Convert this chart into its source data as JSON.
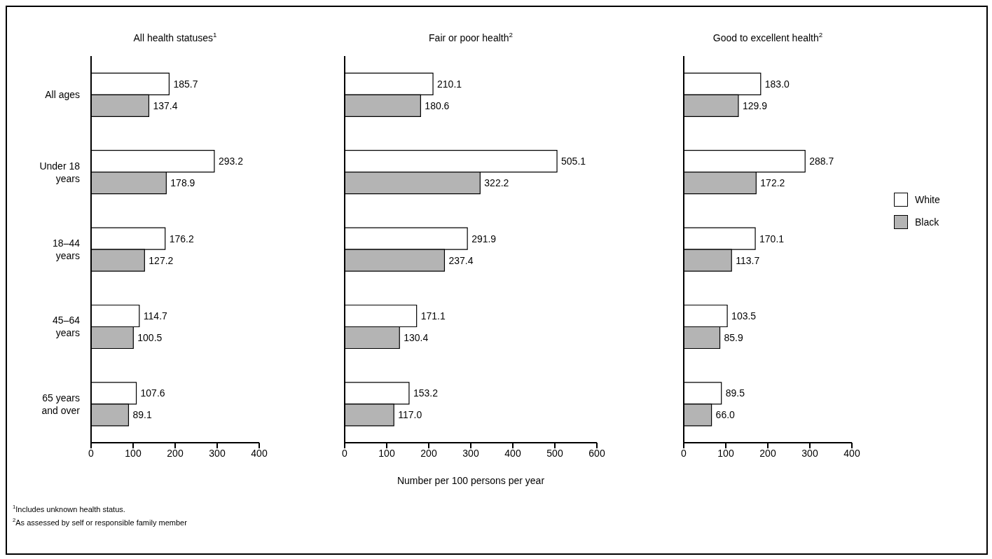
{
  "chart_data": [
    {
      "type": "bar",
      "orientation": "horizontal",
      "title": "All health statuses$^{1}$",
      "categories": [
        "All ages",
        "Under 18 years",
        "18–44 years",
        "45–64 years",
        "65 years and over"
      ],
      "series": [
        {
          "color": "#ffffff",
          "values": [
            185.7,
            293.2,
            176.2,
            114.7,
            107.6
          ],
          "value_labels": [
            "185.7",
            "293.2",
            "176.2",
            "114.7",
            "107.6"
          ]
        },
        {
          "color": "#b4b4b4",
          "values": [
            137.4,
            178.9,
            127.2,
            100.5,
            89.1
          ],
          "value_labels": [
            "137.4",
            "178.9",
            "127.2",
            "100.5",
            "89.1"
          ]
        }
      ],
      "xlim": [
        0,
        400
      ],
      "xticks": [
        0,
        100,
        200,
        300,
        400
      ],
      "grid": false,
      "annotations": [
        "$^{1}$Includes unknown health status.",
        "$^{2}$As assessed by self or responsible family member"
      ]
    },
    {
      "type": "bar",
      "orientation": "horizontal",
      "title": "Fair or poor health$^{2}$",
      "xlabel": "Number per 100 persons per year",
      "categories": [
        null,
        null,
        null,
        null,
        null
      ],
      "tick_labels": "x",
      "series": [
        {
          "color": "#ffffff",
          "values": [
            210.1,
            505.1,
            291.9,
            171.1,
            153.2
          ],
          "value_labels": [
            "210.1",
            "505.1",
            "291.9",
            "171.1",
            "153.2"
          ]
        },
        {
          "color": "#b4b4b4",
          "values": [
            180.6,
            322.2,
            237.4,
            130.4,
            117.0
          ],
          "value_labels": [
            "180.6",
            "322.2",
            "237.4",
            "130.4",
            "117.0"
          ]
        }
      ],
      "xlim": [
        0,
        600
      ],
      "xticks": [
        0,
        100,
        200,
        300,
        400,
        500,
        600
      ],
      "grid": false
    },
    {
      "type": "bar",
      "orientation": "horizontal",
      "title": "Good to excellent health$^{2}$",
      "categories": [
        null,
        null,
        null,
        null,
        null
      ],
      "tick_labels": "x",
      "legend": "right",
      "series": [
        {
          "name": "White",
          "color": "#ffffff",
          "values": [
            183.0,
            288.7,
            170.1,
            103.5,
            89.5
          ],
          "value_labels": [
            "183.0",
            "288.7",
            "170.1",
            "103.5",
            "89.5"
          ]
        },
        {
          "name": "Black",
          "color": "#b4b4b4",
          "values": [
            129.9,
            172.2,
            113.7,
            85.9,
            66.0
          ],
          "value_labels": [
            "129.9",
            "172.2",
            "113.7",
            "85.9",
            "66.0"
          ]
        }
      ],
      "xlim": [
        0,
        400
      ],
      "xticks": [
        0,
        100,
        200,
        300,
        400
      ],
      "grid": false
    }
  ]
}
